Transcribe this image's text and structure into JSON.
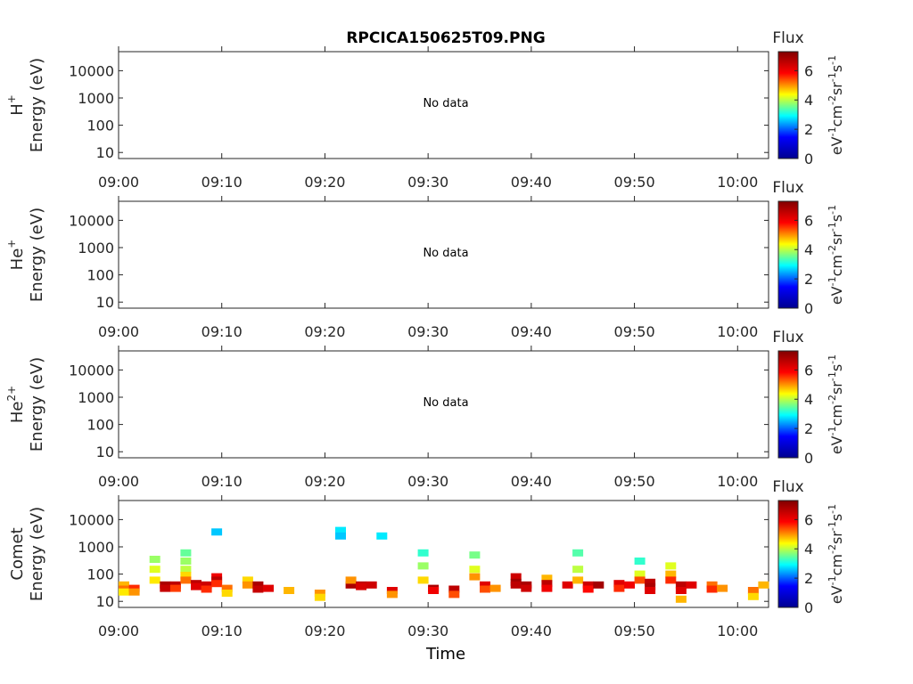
{
  "title": "RPCICA150625T09.PNG",
  "xlabel": "Time",
  "x_ticks": [
    "09:00",
    "09:10",
    "09:20",
    "09:30",
    "09:40",
    "09:50",
    "10:00"
  ],
  "y_ticks": [
    "10000",
    "1000",
    "100",
    "10"
  ],
  "colorbar": {
    "title": "Flux",
    "ticks": [
      "0",
      "2",
      "4",
      "6"
    ],
    "range": [
      0,
      7.3
    ],
    "unit": "eV-1cm-2sr-1s-1",
    "colormap": [
      "#00008f",
      "#0000ff",
      "#00ffff",
      "#ffff00",
      "#ff0000",
      "#800000"
    ]
  },
  "panels": [
    {
      "species_base": "H",
      "species_sup": "+",
      "ylabel": "Energy (eV)",
      "message": "No data"
    },
    {
      "species_base": "He",
      "species_sup": "+",
      "ylabel": "Energy (eV)",
      "message": "No data"
    },
    {
      "species_base": "He",
      "species_sup": "2+",
      "ylabel": "Energy (eV)",
      "message": "No data"
    },
    {
      "species_base": "Comet",
      "species_sup": "",
      "ylabel": "Energy (eV)",
      "message": ""
    }
  ],
  "chart_data": {
    "type": "heatmap",
    "title": "RPCICA150625T09.PNG",
    "xlabel": "Time",
    "ylabel": "Energy (eV)",
    "xlim": [
      "09:00",
      "10:03"
    ],
    "ylim": [
      6,
      50000
    ],
    "yscale": "log",
    "color_range": [
      0,
      7.3
    ],
    "series": [
      {
        "name": "H+",
        "points": []
      },
      {
        "name": "He+",
        "points": []
      },
      {
        "name": "He2+",
        "points": []
      },
      {
        "name": "Comet",
        "points": [
          {
            "t": "09:00",
            "e": 40,
            "v": 4.8
          },
          {
            "t": "09:00",
            "e": 28,
            "v": 5.2
          },
          {
            "t": "09:00",
            "e": 22,
            "v": 4.5
          },
          {
            "t": "09:01",
            "e": 30,
            "v": 5.6
          },
          {
            "t": "09:01",
            "e": 22,
            "v": 5.0
          },
          {
            "t": "09:03",
            "e": 350,
            "v": 3.8
          },
          {
            "t": "09:03",
            "e": 150,
            "v": 4.2
          },
          {
            "t": "09:03",
            "e": 60,
            "v": 4.5
          },
          {
            "t": "09:04",
            "e": 40,
            "v": 6.8
          },
          {
            "t": "09:04",
            "e": 30,
            "v": 6.5
          },
          {
            "t": "09:05",
            "e": 40,
            "v": 6.6
          },
          {
            "t": "09:05",
            "e": 30,
            "v": 5.5
          },
          {
            "t": "09:06",
            "e": 600,
            "v": 3.5
          },
          {
            "t": "09:06",
            "e": 300,
            "v": 3.8
          },
          {
            "t": "09:06",
            "e": 150,
            "v": 4.0
          },
          {
            "t": "09:06",
            "e": 90,
            "v": 4.6
          },
          {
            "t": "09:06",
            "e": 60,
            "v": 5.2
          },
          {
            "t": "09:07",
            "e": 45,
            "v": 6.6
          },
          {
            "t": "09:07",
            "e": 35,
            "v": 6.2
          },
          {
            "t": "09:08",
            "e": 40,
            "v": 6.4
          },
          {
            "t": "09:08",
            "e": 28,
            "v": 5.6
          },
          {
            "t": "09:09",
            "e": 3500,
            "v": 2.6
          },
          {
            "t": "09:09",
            "e": 80,
            "v": 6.0
          },
          {
            "t": "09:09",
            "e": 60,
            "v": 6.6
          },
          {
            "t": "09:09",
            "e": 45,
            "v": 5.6
          },
          {
            "t": "09:10",
            "e": 30,
            "v": 5.2
          },
          {
            "t": "09:10",
            "e": 20,
            "v": 4.6
          },
          {
            "t": "09:12",
            "e": 60,
            "v": 4.6
          },
          {
            "t": "09:12",
            "e": 40,
            "v": 5.0
          },
          {
            "t": "09:13",
            "e": 40,
            "v": 6.8
          },
          {
            "t": "09:13",
            "e": 28,
            "v": 6.5
          },
          {
            "t": "09:14",
            "e": 30,
            "v": 6.2
          },
          {
            "t": "09:16",
            "e": 25,
            "v": 4.8
          },
          {
            "t": "09:19",
            "e": 20,
            "v": 5.0
          },
          {
            "t": "09:19",
            "e": 14,
            "v": 4.6
          },
          {
            "t": "09:21",
            "e": 4000,
            "v": 2.8
          },
          {
            "t": "09:21",
            "e": 2500,
            "v": 2.6
          },
          {
            "t": "09:22",
            "e": 40,
            "v": 6.8
          },
          {
            "t": "09:22",
            "e": 60,
            "v": 5.0
          },
          {
            "t": "09:23",
            "e": 40,
            "v": 6.6
          },
          {
            "t": "09:23",
            "e": 35,
            "v": 6.3
          },
          {
            "t": "09:24",
            "e": 40,
            "v": 6.4
          },
          {
            "t": "09:25",
            "e": 2500,
            "v": 2.8
          },
          {
            "t": "09:26",
            "e": 25,
            "v": 6.2
          },
          {
            "t": "09:26",
            "e": 18,
            "v": 5.0
          },
          {
            "t": "09:29",
            "e": 600,
            "v": 3.2
          },
          {
            "t": "09:29",
            "e": 200,
            "v": 3.8
          },
          {
            "t": "09:29",
            "e": 60,
            "v": 4.6
          },
          {
            "t": "09:30",
            "e": 30,
            "v": 6.8
          },
          {
            "t": "09:30",
            "e": 25,
            "v": 6.0
          },
          {
            "t": "09:32",
            "e": 28,
            "v": 6.6
          },
          {
            "t": "09:32",
            "e": 18,
            "v": 5.4
          },
          {
            "t": "09:34",
            "e": 500,
            "v": 3.6
          },
          {
            "t": "09:34",
            "e": 150,
            "v": 4.2
          },
          {
            "t": "09:34",
            "e": 80,
            "v": 5.0
          },
          {
            "t": "09:35",
            "e": 40,
            "v": 6.2
          },
          {
            "t": "09:35",
            "e": 28,
            "v": 5.4
          },
          {
            "t": "09:36",
            "e": 30,
            "v": 5.0
          },
          {
            "t": "09:38",
            "e": 80,
            "v": 6.4
          },
          {
            "t": "09:38",
            "e": 50,
            "v": 6.9
          },
          {
            "t": "09:38",
            "e": 40,
            "v": 6.6
          },
          {
            "t": "09:39",
            "e": 40,
            "v": 6.8
          },
          {
            "t": "09:39",
            "e": 30,
            "v": 6.4
          },
          {
            "t": "09:41",
            "e": 70,
            "v": 4.8
          },
          {
            "t": "09:41",
            "e": 45,
            "v": 6.6
          },
          {
            "t": "09:41",
            "e": 30,
            "v": 6.0
          },
          {
            "t": "09:43",
            "e": 40,
            "v": 6.2
          },
          {
            "t": "09:44",
            "e": 600,
            "v": 3.4
          },
          {
            "t": "09:44",
            "e": 150,
            "v": 4.0
          },
          {
            "t": "09:44",
            "e": 60,
            "v": 4.8
          },
          {
            "t": "09:45",
            "e": 40,
            "v": 6.4
          },
          {
            "t": "09:45",
            "e": 28,
            "v": 5.8
          },
          {
            "t": "09:46",
            "e": 40,
            "v": 6.9
          },
          {
            "t": "09:48",
            "e": 45,
            "v": 6.2
          },
          {
            "t": "09:48",
            "e": 30,
            "v": 5.6
          },
          {
            "t": "09:49",
            "e": 40,
            "v": 6.0
          },
          {
            "t": "09:50",
            "e": 300,
            "v": 3.2
          },
          {
            "t": "09:50",
            "e": 100,
            "v": 4.2
          },
          {
            "t": "09:50",
            "e": 60,
            "v": 5.4
          },
          {
            "t": "09:51",
            "e": 50,
            "v": 6.6
          },
          {
            "t": "09:51",
            "e": 35,
            "v": 6.8
          },
          {
            "t": "09:51",
            "e": 25,
            "v": 6.2
          },
          {
            "t": "09:53",
            "e": 200,
            "v": 4.2
          },
          {
            "t": "09:53",
            "e": 100,
            "v": 4.8
          },
          {
            "t": "09:53",
            "e": 60,
            "v": 5.6
          },
          {
            "t": "09:54",
            "e": 40,
            "v": 6.6
          },
          {
            "t": "09:54",
            "e": 25,
            "v": 6.2
          },
          {
            "t": "09:54",
            "e": 12,
            "v": 4.8
          },
          {
            "t": "09:55",
            "e": 40,
            "v": 6.2
          },
          {
            "t": "09:57",
            "e": 40,
            "v": 5.2
          },
          {
            "t": "09:57",
            "e": 28,
            "v": 5.6
          },
          {
            "t": "09:58",
            "e": 30,
            "v": 5.0
          },
          {
            "t": "10:01",
            "e": 25,
            "v": 5.2
          },
          {
            "t": "10:01",
            "e": 15,
            "v": 4.6
          },
          {
            "t": "10:02",
            "e": 40,
            "v": 4.8
          }
        ]
      }
    ]
  }
}
